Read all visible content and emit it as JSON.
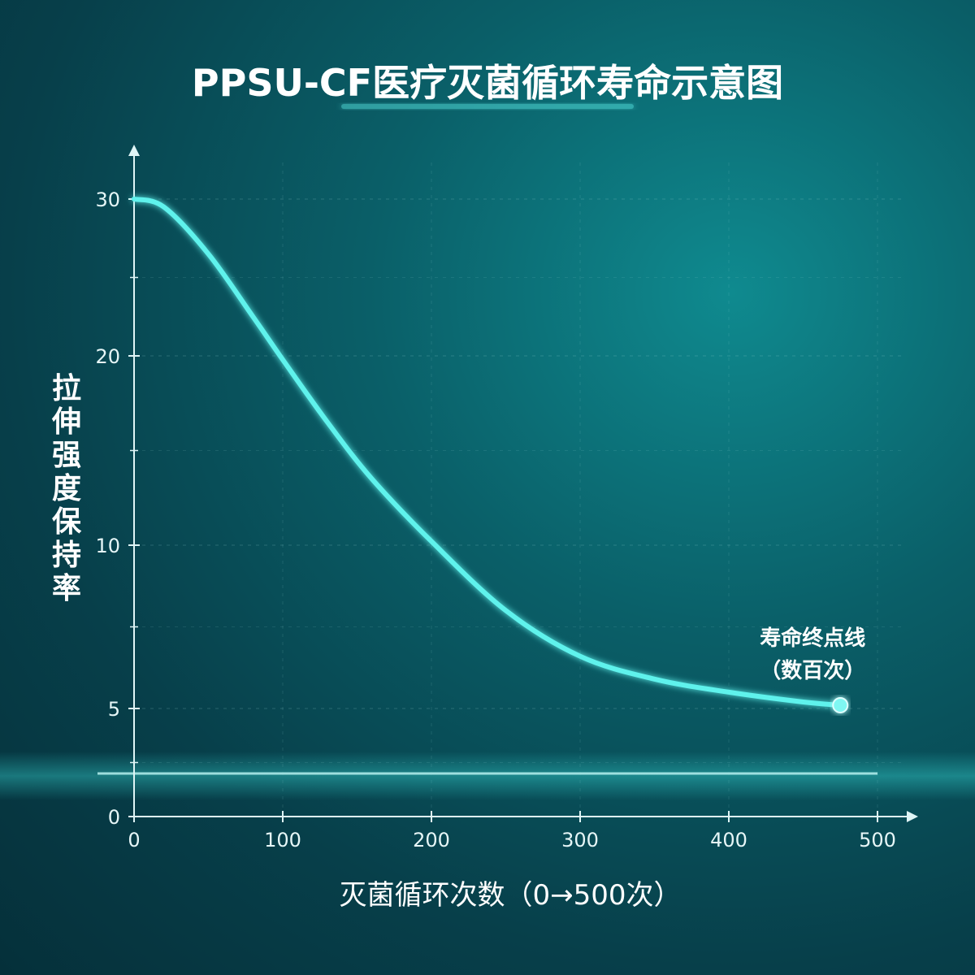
{
  "chart_data": {
    "type": "line",
    "title": "PPSU-CF医疗灭菌循环寿命示意图",
    "xlabel": "灭菌循环次数（0→500次）",
    "ylabel": "拉伸强度保持率",
    "xlim": [
      0,
      500
    ],
    "y_ticks": [
      0,
      5,
      10,
      20,
      30
    ],
    "x_ticks": [
      0,
      100,
      200,
      300,
      400,
      500
    ],
    "x": [
      0,
      20,
      50,
      80,
      100,
      130,
      160,
      200,
      250,
      300,
      350,
      400,
      450,
      475
    ],
    "y": [
      30,
      29.5,
      26.5,
      22.5,
      19.8,
      16.5,
      13.5,
      10.2,
      8.0,
      6.6,
      5.9,
      5.5,
      5.2,
      5.1
    ],
    "annotation": {
      "lines": [
        "寿命终点线",
        "（数百次）"
      ],
      "x": 475,
      "y": 5.1
    },
    "grid": true,
    "colors": {
      "line": "#5ff2ec",
      "axis": "#dff5f6",
      "text": "#ffffff"
    }
  }
}
